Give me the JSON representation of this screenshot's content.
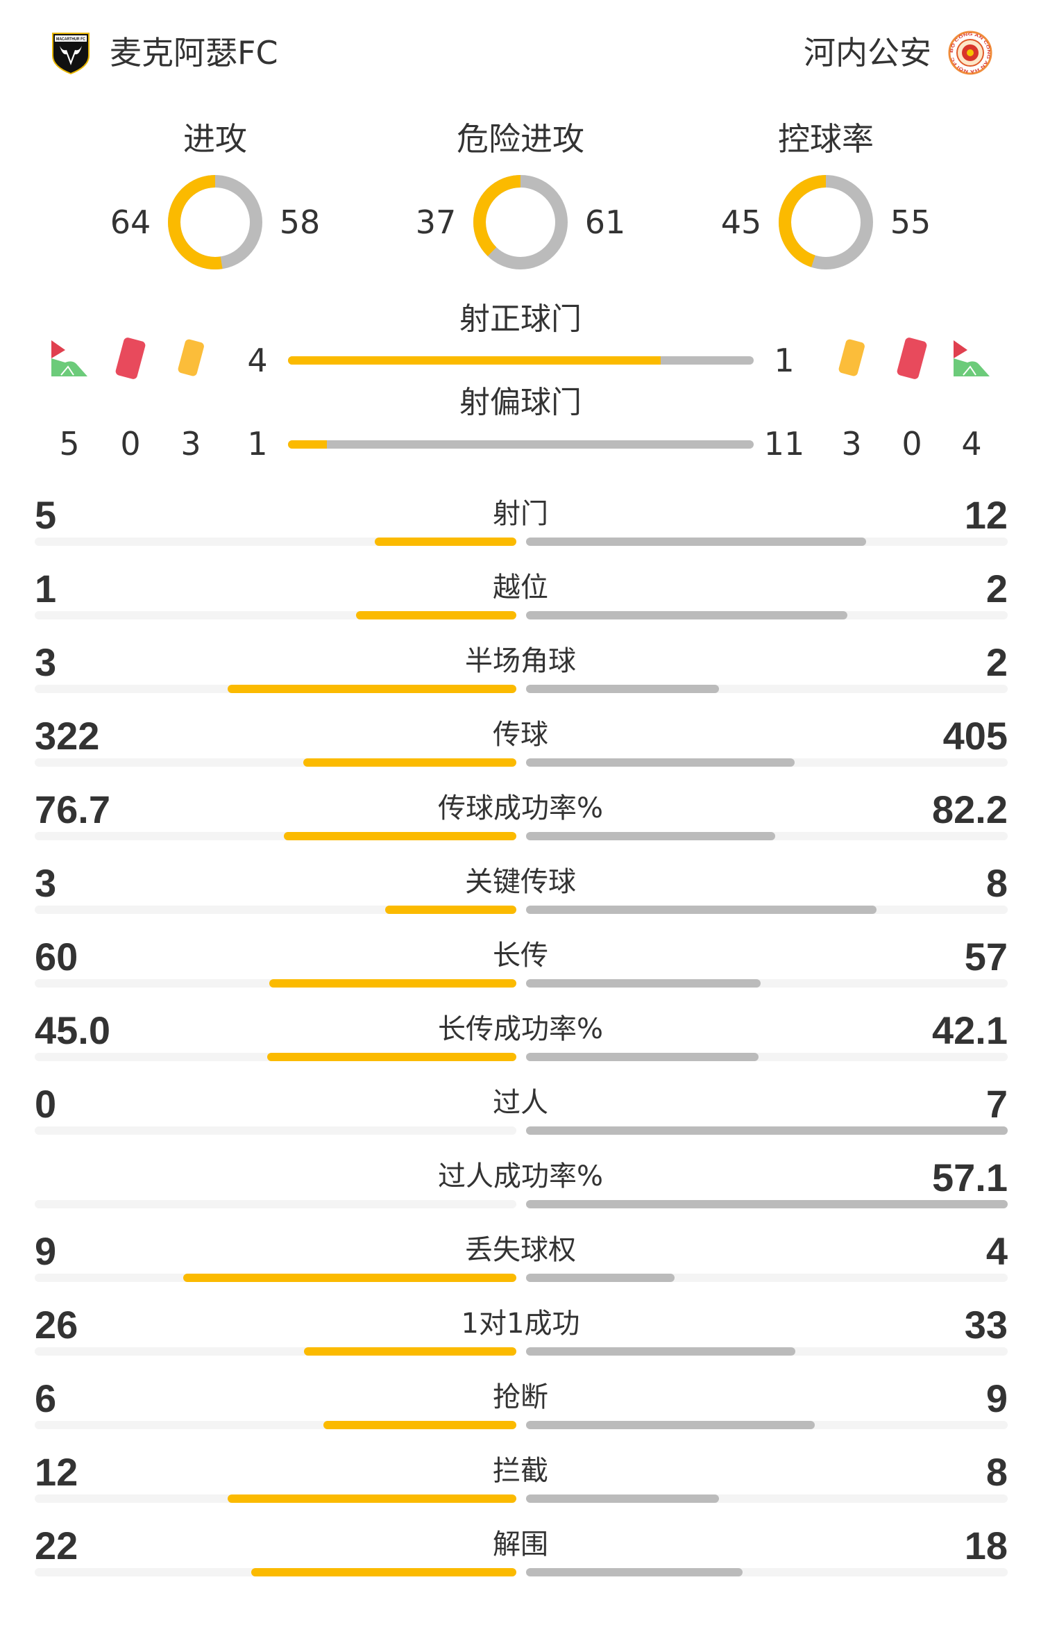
{
  "header": {
    "home_team": "麦克阿瑟FC",
    "away_team": "河内公安",
    "home_logo_text": "MACARTHUR FC",
    "away_logo_text": "BỘ CÔNG AN CÔNG AN HÀ NỘI FC"
  },
  "colors": {
    "home": "#FBBA00",
    "away": "#BBBBBB",
    "track": "#F4F4F4",
    "text": "#333333"
  },
  "donuts": [
    {
      "title": "进攻",
      "home": "64",
      "away": "58"
    },
    {
      "title": "危险进攻",
      "home": "37",
      "away": "61"
    },
    {
      "title": "控球率",
      "home": "45",
      "away": "55"
    }
  ],
  "shots_on_target": {
    "label": "射正球门",
    "home": "4",
    "away": "1"
  },
  "shots_off_target": {
    "label": "射偏球门",
    "home": "1",
    "away": "11"
  },
  "discipline": {
    "icons": [
      "corner-flag-icon",
      "red-card-icon",
      "yellow-card-icon"
    ],
    "home": {
      "corners": "5",
      "red_cards": "0",
      "yellow_cards": "3"
    },
    "away": {
      "corners": "4",
      "red_cards": "0",
      "yellow_cards": "3"
    }
  },
  "stats": [
    {
      "label": "射门",
      "home": "5",
      "away": "12"
    },
    {
      "label": "越位",
      "home": "1",
      "away": "2"
    },
    {
      "label": "半场角球",
      "home": "3",
      "away": "2"
    },
    {
      "label": "传球",
      "home": "322",
      "away": "405"
    },
    {
      "label": "传球成功率%",
      "home": "76.7",
      "away": "82.2"
    },
    {
      "label": "关键传球",
      "home": "3",
      "away": "8"
    },
    {
      "label": "长传",
      "home": "60",
      "away": "57"
    },
    {
      "label": "长传成功率%",
      "home": "45.0",
      "away": "42.1"
    },
    {
      "label": "过人",
      "home": "0",
      "away": "7"
    },
    {
      "label": "过人成功率%",
      "home": "",
      "away": "57.1"
    },
    {
      "label": "丢失球权",
      "home": "9",
      "away": "4"
    },
    {
      "label": "1对1成功",
      "home": "26",
      "away": "33"
    },
    {
      "label": "抢断",
      "home": "6",
      "away": "9"
    },
    {
      "label": "拦截",
      "home": "12",
      "away": "8"
    },
    {
      "label": "解围",
      "home": "22",
      "away": "18"
    }
  ]
}
